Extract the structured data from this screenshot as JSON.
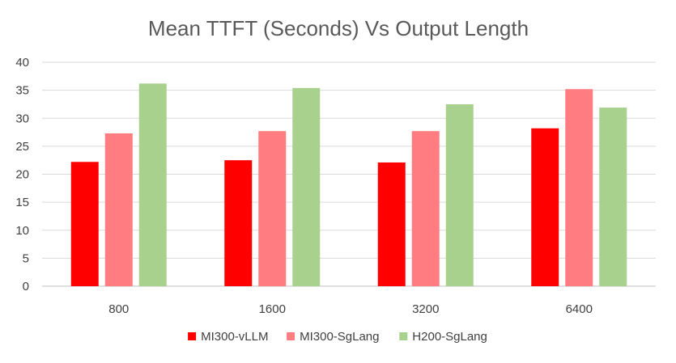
{
  "chart_data": {
    "type": "bar",
    "title": "Mean TTFT (Seconds) Vs Output Length",
    "categories": [
      "800",
      "1600",
      "3200",
      "6400"
    ],
    "series": [
      {
        "name": "MI300-vLLM",
        "color": "#ff0000",
        "values": [
          22.2,
          22.5,
          22.1,
          28.2
        ]
      },
      {
        "name": "MI300-SgLang",
        "color": "#ff7c80",
        "values": [
          27.3,
          27.7,
          27.7,
          35.2
        ]
      },
      {
        "name": "H200-SgLang",
        "color": "#a9d18e",
        "values": [
          36.2,
          35.4,
          32.5,
          31.9
        ]
      }
    ],
    "ylim": [
      0,
      40
    ],
    "yticks": [
      0,
      5,
      10,
      15,
      20,
      25,
      30,
      35,
      40
    ],
    "grid": true,
    "legend_position": "bottom",
    "xlabel": "",
    "ylabel": ""
  }
}
